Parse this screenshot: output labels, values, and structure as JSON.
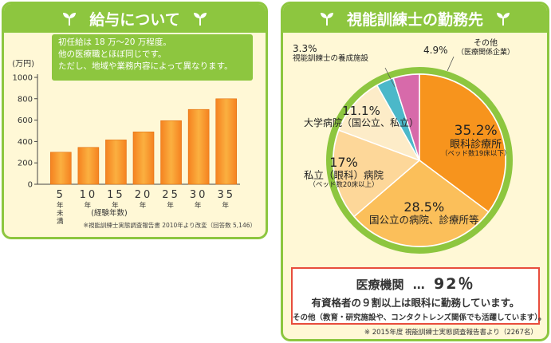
{
  "left": {
    "title": "給与について",
    "note": [
      "初任給は 18 万〜20 万程度。",
      "他の医療職とほぼ同じです。",
      "ただし、地域や業務内容によって異なります。"
    ],
    "source": "※視能訓練士実態調査報告書 2010年より改変（回答数 5,146）"
  },
  "right": {
    "title": "視能訓練士の勤務先",
    "summary": {
      "label": "医療機関",
      "dots": "…",
      "value": "92％",
      "line2": "有資格者の９割以上は眼科に勤務しています。",
      "line3": "その他（教育・研究施設や、コンタクトレンズ関係でも活躍しています）。"
    },
    "source": "※ 2015年度 視能訓練士実態調査報告書より（2267名）"
  },
  "chart_data": [
    {
      "type": "bar",
      "title": "",
      "ylabel": "(万円)",
      "xlabel": "(経験年数)",
      "categories": [
        {
          "num": "5",
          "unit": "年未満"
        },
        {
          "num": "10",
          "unit": "年"
        },
        {
          "num": "15",
          "unit": "年"
        },
        {
          "num": "20",
          "unit": "年"
        },
        {
          "num": "25",
          "unit": "年"
        },
        {
          "num": "30",
          "unit": "年"
        },
        {
          "num": "35",
          "unit": "年"
        }
      ],
      "values": [
        300,
        345,
        415,
        490,
        595,
        700,
        800
      ],
      "yticks": [
        "1000",
        "800",
        "600",
        "400",
        "200",
        "0"
      ],
      "ylim": [
        0,
        1000
      ],
      "color": "#f7941d"
    },
    {
      "type": "pie",
      "slices": [
        {
          "pct": "35.2%",
          "value": 35.2,
          "name": "眼科診療所",
          "sub": "（ベッド数19床以下）",
          "color": "#f7941d"
        },
        {
          "pct": "28.5%",
          "value": 28.5,
          "name": "国公立の病院、診療所等",
          "sub": "",
          "color": "#fbbf5a"
        },
        {
          "pct": "17%",
          "value": 17.0,
          "name": "私立（眼科）病院",
          "sub": "（ベッド数20床以上）",
          "color": "#fdd799"
        },
        {
          "pct": "11.1%",
          "value": 11.1,
          "name": "大学病院（国公立、私立）",
          "sub": "",
          "color": "#fdecc8"
        },
        {
          "pct": "3.3%",
          "value": 3.3,
          "name": "視能訓練士の養成施設",
          "sub": "",
          "color": "#4bb8c9"
        },
        {
          "pct": "4.9%",
          "value": 4.9,
          "name": "その他",
          "sub": "（医療関係企業）",
          "color": "#d76aaa"
        }
      ],
      "ring_color": "#8dc63f"
    }
  ]
}
